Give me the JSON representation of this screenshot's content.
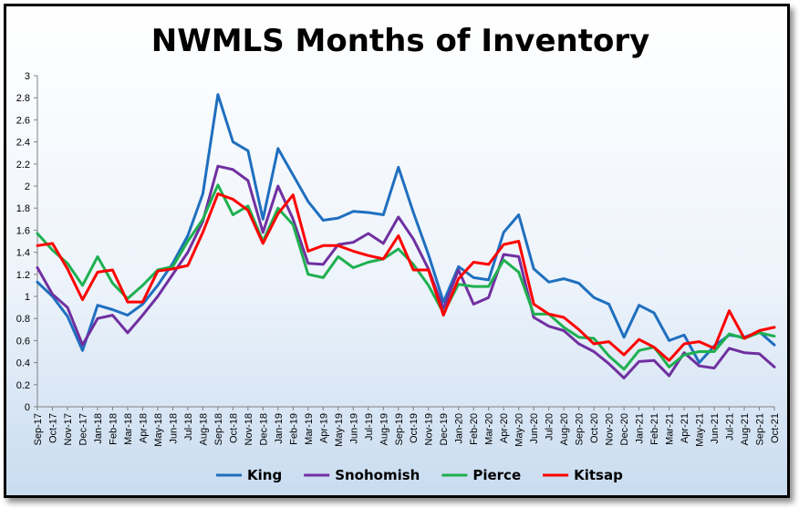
{
  "chart_data": {
    "type": "line",
    "title": "NWMLS Months of Inventory",
    "xlabel": "",
    "ylabel": "",
    "ylim": [
      0,
      3
    ],
    "yticks": [
      "0",
      "0.2",
      "0.4",
      "0.6",
      "0.8",
      "1",
      "1.2",
      "1.4",
      "1.6",
      "1.8",
      "2",
      "2.2",
      "2.4",
      "2.6",
      "2.8",
      "3"
    ],
    "grid": false,
    "legend_position": "bottom",
    "categories": [
      "Sep-17",
      "Oct-17",
      "Nov-17",
      "Dec-17",
      "Jan-18",
      "Feb-18",
      "Mar-18",
      "Apr-18",
      "May-18",
      "Jun-18",
      "Jul-18",
      "Aug-18",
      "Sep-18",
      "Oct-18",
      "Nov-18",
      "Dec-18",
      "Jan-19",
      "Feb-19",
      "Mar-19",
      "Apr-19",
      "May-19",
      "Jun-19",
      "Jul-19",
      "Aug-19",
      "Sep-19",
      "Oct-19",
      "Nov-19",
      "Dec-19",
      "Jan-20",
      "Feb-20",
      "Mar-20",
      "Apr-20",
      "May-20",
      "Jun-20",
      "Jul-20",
      "Aug-20",
      "Sep-20",
      "Oct-20",
      "Nov-20",
      "Dec-20",
      "Jan-21",
      "Feb-21",
      "Mar-21",
      "Apr-21",
      "May-21",
      "Jun-21",
      "Jul-21",
      "Aug-21",
      "Sep-21",
      "Oct-21"
    ],
    "series": [
      {
        "name": "King",
        "color": "#1f6fbf",
        "values": [
          1.13,
          1.0,
          0.82,
          0.51,
          0.92,
          0.88,
          0.83,
          0.93,
          1.1,
          1.3,
          1.55,
          1.93,
          2.83,
          2.4,
          2.32,
          1.7,
          2.34,
          2.1,
          1.86,
          1.69,
          1.71,
          1.77,
          1.76,
          1.74,
          2.17,
          1.76,
          1.38,
          0.95,
          1.27,
          1.17,
          1.15,
          1.58,
          1.74,
          1.25,
          1.13,
          1.16,
          1.12,
          0.99,
          0.93,
          0.63,
          0.92,
          0.85,
          0.6,
          0.65,
          0.4,
          0.55,
          0.65,
          0.63,
          0.68,
          0.56
        ]
      },
      {
        "name": "Snohomish",
        "color": "#7030a0",
        "values": [
          1.26,
          1.02,
          0.9,
          0.56,
          0.8,
          0.83,
          0.67,
          0.83,
          1.0,
          1.2,
          1.4,
          1.68,
          2.18,
          2.15,
          2.05,
          1.58,
          2.0,
          1.7,
          1.3,
          1.29,
          1.47,
          1.49,
          1.57,
          1.48,
          1.72,
          1.52,
          1.25,
          0.89,
          1.24,
          0.93,
          0.99,
          1.38,
          1.36,
          0.81,
          0.73,
          0.69,
          0.57,
          0.5,
          0.39,
          0.26,
          0.41,
          0.42,
          0.28,
          0.49,
          0.37,
          0.35,
          0.53,
          0.49,
          0.48,
          0.36
        ]
      },
      {
        "name": "Pierce",
        "color": "#1fb050",
        "values": [
          1.57,
          1.42,
          1.3,
          1.1,
          1.36,
          1.12,
          0.98,
          1.1,
          1.24,
          1.27,
          1.5,
          1.7,
          2.01,
          1.74,
          1.82,
          1.5,
          1.8,
          1.65,
          1.2,
          1.17,
          1.36,
          1.26,
          1.31,
          1.34,
          1.43,
          1.29,
          1.1,
          0.85,
          1.11,
          1.09,
          1.09,
          1.33,
          1.22,
          0.84,
          0.84,
          0.72,
          0.63,
          0.62,
          0.46,
          0.34,
          0.51,
          0.54,
          0.36,
          0.47,
          0.5,
          0.5,
          0.66,
          0.62,
          0.67,
          0.64
        ]
      },
      {
        "name": "Kitsap",
        "color": "#ff0000",
        "values": [
          1.46,
          1.48,
          1.25,
          0.97,
          1.22,
          1.24,
          0.95,
          0.95,
          1.23,
          1.25,
          1.28,
          1.58,
          1.93,
          1.88,
          1.78,
          1.48,
          1.75,
          1.92,
          1.41,
          1.46,
          1.46,
          1.41,
          1.37,
          1.34,
          1.55,
          1.24,
          1.24,
          0.83,
          1.16,
          1.31,
          1.29,
          1.47,
          1.5,
          0.93,
          0.84,
          0.81,
          0.7,
          0.57,
          0.59,
          0.47,
          0.61,
          0.54,
          0.42,
          0.57,
          0.59,
          0.53,
          0.87,
          0.62,
          0.69,
          0.72
        ]
      }
    ]
  }
}
